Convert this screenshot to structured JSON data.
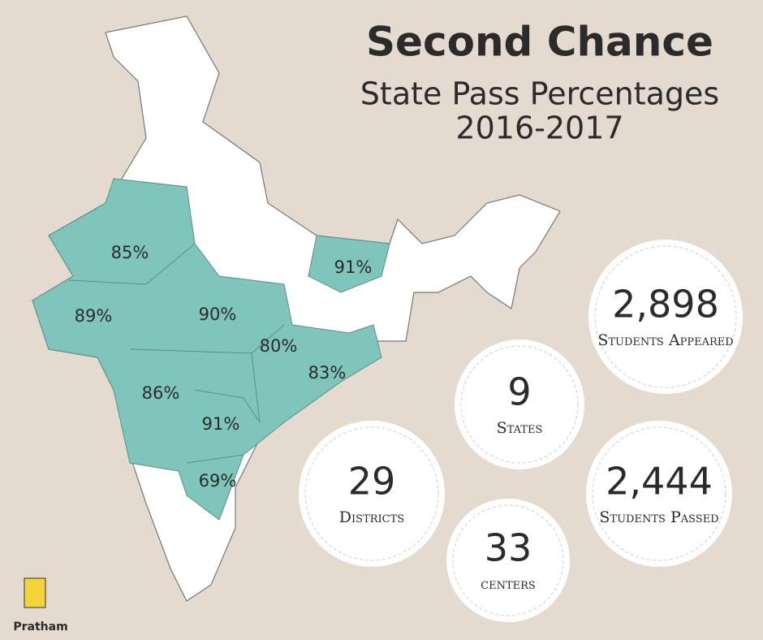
{
  "header": {
    "title": "Second Chance",
    "subtitle": "State Pass Percentages",
    "period": "2016-2017"
  },
  "map": {
    "regions": [
      {
        "label": "85%"
      },
      {
        "label": "91%"
      },
      {
        "label": "89%"
      },
      {
        "label": "90%"
      },
      {
        "label": "80%"
      },
      {
        "label": "83%"
      },
      {
        "label": "86%"
      },
      {
        "label": "91%"
      },
      {
        "label": "69%"
      }
    ]
  },
  "stats": [
    {
      "value": "2,898",
      "label": "Students Appeared"
    },
    {
      "value": "9",
      "label": "States"
    },
    {
      "value": "29",
      "label": "Districts"
    },
    {
      "value": "2,444",
      "label": "Students Passed"
    },
    {
      "value": "33",
      "label": "centers"
    }
  ],
  "logo": {
    "text": "Pratham"
  }
}
